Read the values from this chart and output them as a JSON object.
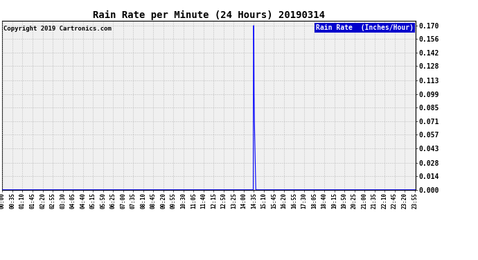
{
  "title": "Rain Rate per Minute (24 Hours) 20190314",
  "copyright": "Copyright 2019 Cartronics.com",
  "legend_label": "Rain Rate  (Inches/Hour)",
  "ylabel_ticks": [
    0.0,
    0.014,
    0.028,
    0.043,
    0.057,
    0.071,
    0.085,
    0.099,
    0.113,
    0.128,
    0.142,
    0.156,
    0.17
  ],
  "ylim": [
    0.0,
    0.175
  ],
  "line_color": "#0000ff",
  "background_color": "#ffffff",
  "plot_bg_color": "#f0f0f0",
  "grid_color": "#b0b0b0",
  "spike_minute": 875,
  "spike_data": [
    [
      873,
      0.0
    ],
    [
      874,
      0.17
    ],
    [
      875,
      0.17
    ],
    [
      876,
      0.099
    ],
    [
      877,
      0.071
    ],
    [
      878,
      0.057
    ],
    [
      879,
      0.043
    ],
    [
      880,
      0.028
    ],
    [
      881,
      0.014
    ],
    [
      882,
      0.0
    ]
  ],
  "total_minutes": 1440,
  "xtick_labels": [
    "00:00",
    "00:35",
    "01:10",
    "01:45",
    "02:20",
    "02:55",
    "03:30",
    "04:05",
    "04:40",
    "05:15",
    "05:50",
    "06:25",
    "07:00",
    "07:35",
    "08:10",
    "08:45",
    "09:20",
    "09:55",
    "10:30",
    "11:05",
    "11:40",
    "12:15",
    "12:50",
    "13:25",
    "14:00",
    "14:35",
    "15:10",
    "15:45",
    "16:20",
    "16:55",
    "17:30",
    "18:05",
    "18:40",
    "19:15",
    "19:50",
    "20:25",
    "21:00",
    "21:35",
    "22:10",
    "22:45",
    "23:20",
    "23:55"
  ],
  "xtick_positions_minutes": [
    0,
    35,
    70,
    105,
    140,
    175,
    210,
    245,
    280,
    315,
    350,
    385,
    420,
    455,
    490,
    525,
    560,
    595,
    630,
    665,
    700,
    735,
    770,
    805,
    840,
    875,
    910,
    945,
    980,
    1015,
    1050,
    1085,
    1120,
    1155,
    1190,
    1225,
    1260,
    1295,
    1330,
    1365,
    1400,
    1435
  ],
  "title_fontsize": 10,
  "copyright_fontsize": 6.5,
  "ytick_fontsize": 7,
  "xtick_fontsize": 5.5,
  "legend_fontsize": 7,
  "legend_bg_color": "#0000cc",
  "legend_text_color": "#ffffff"
}
